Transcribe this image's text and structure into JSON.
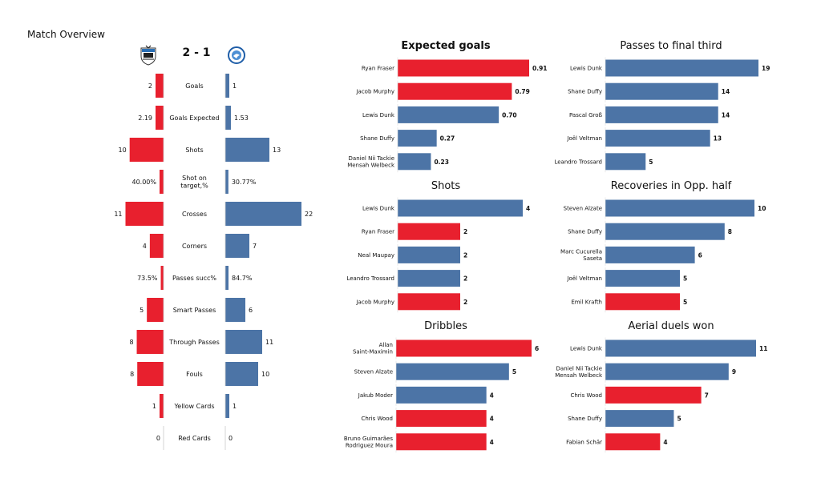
{
  "page": {
    "title": "Match Overview",
    "score": "2 - 1"
  },
  "colors": {
    "home": "#e8202e",
    "away": "#4c74a6"
  },
  "icons": {
    "home_crest": "newcastle-crest-icon",
    "away_crest": "brighton-crest-icon"
  },
  "chart_data": [
    {
      "type": "bar",
      "orientation": "diverging-horizontal",
      "categories": [
        "Goals",
        "Goals Expected",
        "Shots",
        "Shot on target,%",
        "Crosses",
        "Corners",
        "Passes succ%",
        "Smart Passes",
        "Through Passes",
        "Fouls",
        "Yellow Cards",
        "Red Cards"
      ],
      "series": [
        {
          "values": [
            2,
            2.19,
            10,
            40.0,
            11,
            4,
            73.5,
            5,
            8,
            8,
            1,
            0
          ],
          "labels": [
            "2",
            "2.19",
            "10",
            "40.00%",
            "11",
            "4",
            "73.5%",
            "5",
            "8",
            "8",
            "1",
            "0"
          ],
          "color": "#e8202e"
        },
        {
          "values": [
            1,
            1.53,
            13,
            30.77,
            22,
            7,
            84.7,
            6,
            11,
            10,
            1,
            0
          ],
          "labels": [
            "1",
            "1.53",
            "13",
            "30.77%",
            "22",
            "7",
            "84.7%",
            "6",
            "11",
            "10",
            "1",
            "0"
          ],
          "color": "#4c74a6"
        }
      ]
    },
    {
      "type": "bar",
      "orientation": "horizontal",
      "title": "Expected goals",
      "categories": [
        "Ryan Fraser",
        "Jacob Murphy",
        "Lewis Dunk",
        "Shane Duffy",
        "Daniel Nii Tackie\nMensah Welbeck"
      ],
      "values": [
        0.91,
        0.79,
        0.7,
        0.27,
        0.23
      ],
      "labels": [
        "0.91",
        "0.79",
        "0.70",
        "0.27",
        "0.23"
      ],
      "teams": [
        "home",
        "home",
        "away",
        "away",
        "away"
      ]
    },
    {
      "type": "bar",
      "orientation": "horizontal",
      "title": "Passes to final third",
      "categories": [
        "Lewis Dunk",
        "Shane Duffy",
        "Pascal Groß",
        "Joël Veltman",
        "Leandro Trossard"
      ],
      "values": [
        19,
        14,
        14,
        13,
        5
      ],
      "labels": [
        "19",
        "14",
        "14",
        "13",
        "5"
      ],
      "teams": [
        "away",
        "away",
        "away",
        "away",
        "away"
      ]
    },
    {
      "type": "bar",
      "orientation": "horizontal",
      "title": "Shots",
      "categories": [
        "Lewis Dunk",
        "Ryan Fraser",
        "Neal Maupay",
        "Leandro Trossard",
        "Jacob Murphy"
      ],
      "values": [
        4,
        2,
        2,
        2,
        2
      ],
      "labels": [
        "4",
        "2",
        "2",
        "2",
        "2"
      ],
      "teams": [
        "away",
        "home",
        "away",
        "away",
        "home"
      ]
    },
    {
      "type": "bar",
      "orientation": "horizontal",
      "title": "Recoveries in Opp. half",
      "categories": [
        "Steven Alzate",
        "Shane Duffy",
        "Marc Cucurella\nSaseta",
        "Joël Veltman",
        "Emil Krafth"
      ],
      "values": [
        10,
        8,
        6,
        5,
        5
      ],
      "labels": [
        "10",
        "8",
        "6",
        "5",
        "5"
      ],
      "teams": [
        "away",
        "away",
        "away",
        "away",
        "home"
      ]
    },
    {
      "type": "bar",
      "orientation": "horizontal",
      "title": "Dribbles",
      "categories": [
        "Allan\nSaint-Maximin",
        "Steven Alzate",
        "Jakub Moder",
        "Chris Wood",
        "Bruno Guimarães\nRodriguez Moura"
      ],
      "values": [
        6,
        5,
        4,
        4,
        4
      ],
      "labels": [
        "6",
        "5",
        "4",
        "4",
        "4"
      ],
      "teams": [
        "home",
        "away",
        "away",
        "home",
        "home"
      ]
    },
    {
      "type": "bar",
      "orientation": "horizontal",
      "title": "Aerial duels won",
      "categories": [
        "Lewis Dunk",
        "Daniel Nii Tackie\nMensah Welbeck",
        "Chris Wood",
        "Shane Duffy",
        "Fabian Schär"
      ],
      "values": [
        11,
        9,
        7,
        5,
        4
      ],
      "labels": [
        "11",
        "9",
        "7",
        "5",
        "4"
      ],
      "teams": [
        "away",
        "away",
        "home",
        "away",
        "home"
      ]
    }
  ]
}
